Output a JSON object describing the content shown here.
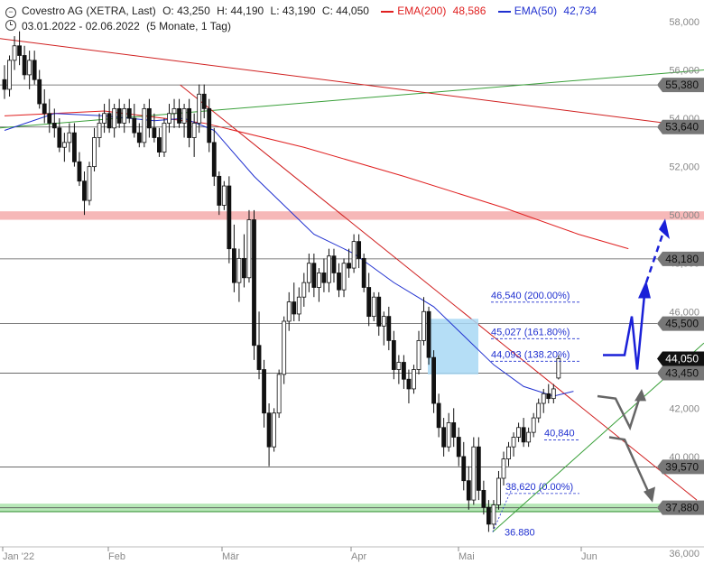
{
  "header": {
    "title": "Covestro AG (XETRA, Last)",
    "open": "O: 43,250",
    "high": "H: 44,190",
    "low": "L: 43,190",
    "close": "C: 44,050",
    "ema200_label": "EMA(200)",
    "ema200_value": "48,586",
    "ema50_label": "EMA(50)",
    "ema50_value": "42,734",
    "range": "03.01.2022 - 02.06.2022",
    "period": "(5 Monate, 1 Tag)",
    "colors": {
      "ema200": "#e02020",
      "ema50": "#2030d0"
    }
  },
  "chart_data": {
    "type": "candlestick",
    "ylim": [
      36,
      58
    ],
    "y_ticks": [
      "58,000",
      "56,000",
      "54,000",
      "52,000",
      "50,000",
      "48,000",
      "46,000",
      "44,000",
      "42,000",
      "40,000",
      "38,000",
      "36,000"
    ],
    "x_ticks": [
      "Jan '22",
      "Feb",
      "Mär",
      "Apr",
      "Mai",
      "Jun"
    ],
    "x_tick_dates": [
      "2022-01-03",
      "2022-02-01",
      "2022-03-01",
      "2022-04-01",
      "2022-05-02",
      "2022-06-01"
    ],
    "last_price": "44,050",
    "levels": [
      {
        "value": 55.38,
        "label": "55,380"
      },
      {
        "value": 53.64,
        "label": "53,640"
      },
      {
        "value": 48.18,
        "label": "48,180"
      },
      {
        "value": 45.5,
        "label": "45,500"
      },
      {
        "value": 43.45,
        "label": "43,450"
      },
      {
        "value": 39.57,
        "label": "39,570"
      },
      {
        "value": 37.88,
        "label": "37,880"
      }
    ],
    "zones": [
      {
        "from": 49.8,
        "to": 50.15,
        "color": "#f6b8b8"
      },
      {
        "from": 37.72,
        "to": 38.05,
        "color": "#b8e8b8"
      }
    ],
    "fibonacci": [
      {
        "value": 46.54,
        "label": "46,540 (200.00%)"
      },
      {
        "value": 45.027,
        "label": "45,027 (161.80%)"
      },
      {
        "value": 44.093,
        "label": "44,093 (138.20%)"
      },
      {
        "value": 40.84,
        "label": "40,840"
      },
      {
        "value": 38.62,
        "label": "38,620 (0.00%)"
      }
    ],
    "low_annotation": {
      "value": 36.88,
      "label": "36.880"
    },
    "candles": [
      [
        55.6,
        56.2,
        54.8,
        55.2
      ],
      [
        55.2,
        56.6,
        54.9,
        56.4
      ],
      [
        56.4,
        57.4,
        56.0,
        57.0
      ],
      [
        57.0,
        57.6,
        56.2,
        56.6
      ],
      [
        56.6,
        57.0,
        55.6,
        55.8
      ],
      [
        55.8,
        56.8,
        55.2,
        56.4
      ],
      [
        56.4,
        56.8,
        55.4,
        55.6
      ],
      [
        55.6,
        56.0,
        54.4,
        54.6
      ],
      [
        54.6,
        55.2,
        53.8,
        54.2
      ],
      [
        54.2,
        54.8,
        53.4,
        53.8
      ],
      [
        53.8,
        54.4,
        53.2,
        53.6
      ],
      [
        53.6,
        54.0,
        52.6,
        52.8
      ],
      [
        52.8,
        53.4,
        52.2,
        53.0
      ],
      [
        53.0,
        53.8,
        52.6,
        53.4
      ],
      [
        53.4,
        53.8,
        52.0,
        52.2
      ],
      [
        52.2,
        52.6,
        51.2,
        51.4
      ],
      [
        51.4,
        51.8,
        50.0,
        50.6
      ],
      [
        50.6,
        52.2,
        50.4,
        52.0
      ],
      [
        52.0,
        53.6,
        51.8,
        53.2
      ],
      [
        53.2,
        54.2,
        52.8,
        53.8
      ],
      [
        53.8,
        54.6,
        53.4,
        54.2
      ],
      [
        54.2,
        54.8,
        53.4,
        53.6
      ],
      [
        53.6,
        54.6,
        53.2,
        54.4
      ],
      [
        54.4,
        54.8,
        53.6,
        53.8
      ],
      [
        53.8,
        54.6,
        53.4,
        54.4
      ],
      [
        54.4,
        54.8,
        53.8,
        54.0
      ],
      [
        54.0,
        54.6,
        53.2,
        53.4
      ],
      [
        53.4,
        53.8,
        52.8,
        53.0
      ],
      [
        53.0,
        54.6,
        52.8,
        54.4
      ],
      [
        54.4,
        54.8,
        53.2,
        53.6
      ],
      [
        53.6,
        54.2,
        53.0,
        53.2
      ],
      [
        53.2,
        53.6,
        52.4,
        52.6
      ],
      [
        52.6,
        54.0,
        52.4,
        53.8
      ],
      [
        53.8,
        54.6,
        53.4,
        54.2
      ],
      [
        54.2,
        54.8,
        53.6,
        54.4
      ],
      [
        54.4,
        54.8,
        53.6,
        53.8
      ],
      [
        53.8,
        54.6,
        53.2,
        54.4
      ],
      [
        54.4,
        54.8,
        52.8,
        53.2
      ],
      [
        53.2,
        54.2,
        52.4,
        53.8
      ],
      [
        53.8,
        55.4,
        53.4,
        55.0
      ],
      [
        55.0,
        55.4,
        54.0,
        54.4
      ],
      [
        54.4,
        54.8,
        52.6,
        53.0
      ],
      [
        53.0,
        53.6,
        51.2,
        51.6
      ],
      [
        51.6,
        51.8,
        50.0,
        50.4
      ],
      [
        50.4,
        51.4,
        50.2,
        51.2
      ],
      [
        51.2,
        51.6,
        48.0,
        48.6
      ],
      [
        48.6,
        49.6,
        46.8,
        47.2
      ],
      [
        47.2,
        48.6,
        46.4,
        48.2
      ],
      [
        48.2,
        49.2,
        47.0,
        47.4
      ],
      [
        47.4,
        50.2,
        47.2,
        49.8
      ],
      [
        49.8,
        50.2,
        44.0,
        44.6
      ],
      [
        44.6,
        46.0,
        43.2,
        43.6
      ],
      [
        43.6,
        44.0,
        41.2,
        41.8
      ],
      [
        41.8,
        42.2,
        39.6,
        40.4
      ],
      [
        40.4,
        42.0,
        40.2,
        41.8
      ],
      [
        41.8,
        43.6,
        41.6,
        43.4
      ],
      [
        43.4,
        45.8,
        43.0,
        45.6
      ],
      [
        45.6,
        46.8,
        45.2,
        46.4
      ],
      [
        46.4,
        47.2,
        45.6,
        45.9
      ],
      [
        45.9,
        47.0,
        45.6,
        46.6
      ],
      [
        46.6,
        47.6,
        46.2,
        47.2
      ],
      [
        47.2,
        48.4,
        46.8,
        48.0
      ],
      [
        48.0,
        48.4,
        46.6,
        47.0
      ],
      [
        47.0,
        47.8,
        46.4,
        47.6
      ],
      [
        47.6,
        48.2,
        46.8,
        47.2
      ],
      [
        47.2,
        48.6,
        46.8,
        48.3
      ],
      [
        48.3,
        48.6,
        47.2,
        47.6
      ],
      [
        47.6,
        48.0,
        46.6,
        46.9
      ],
      [
        46.9,
        48.2,
        46.6,
        48.0
      ],
      [
        48.0,
        48.6,
        47.4,
        47.8
      ],
      [
        47.8,
        49.2,
        47.6,
        48.9
      ],
      [
        48.9,
        49.2,
        47.8,
        48.2
      ],
      [
        48.2,
        48.4,
        46.8,
        47.0
      ],
      [
        47.0,
        47.6,
        45.4,
        45.8
      ],
      [
        45.8,
        46.8,
        45.6,
        46.6
      ],
      [
        46.6,
        46.8,
        45.0,
        45.4
      ],
      [
        45.4,
        46.0,
        44.6,
        45.8
      ],
      [
        45.8,
        46.2,
        44.4,
        44.8
      ],
      [
        44.8,
        45.2,
        43.2,
        43.6
      ],
      [
        43.6,
        44.2,
        43.0,
        43.9
      ],
      [
        43.9,
        44.2,
        42.8,
        43.2
      ],
      [
        43.2,
        43.6,
        42.2,
        42.8
      ],
      [
        42.8,
        43.8,
        42.6,
        43.6
      ],
      [
        43.6,
        45.2,
        43.4,
        44.8
      ],
      [
        44.8,
        46.6,
        44.6,
        46.0
      ],
      [
        46.0,
        46.2,
        43.8,
        44.1
      ],
      [
        44.1,
        44.4,
        41.8,
        42.2
      ],
      [
        42.2,
        42.6,
        40.8,
        41.2
      ],
      [
        41.2,
        41.6,
        40.0,
        40.4
      ],
      [
        40.4,
        41.8,
        40.2,
        41.4
      ],
      [
        41.4,
        42.0,
        40.4,
        40.8
      ],
      [
        40.8,
        41.2,
        39.6,
        40.0
      ],
      [
        40.0,
        40.6,
        38.6,
        39.0
      ],
      [
        39.0,
        39.6,
        37.8,
        38.2
      ],
      [
        38.2,
        40.8,
        38.0,
        40.4
      ],
      [
        40.4,
        40.8,
        38.2,
        38.6
      ],
      [
        38.6,
        39.0,
        37.6,
        37.9
      ],
      [
        37.9,
        38.2,
        36.88,
        37.2
      ],
      [
        37.2,
        38.2,
        37.0,
        38.0
      ],
      [
        38.0,
        39.4,
        37.8,
        39.1
      ],
      [
        39.1,
        40.2,
        38.8,
        39.9
      ],
      [
        39.9,
        40.6,
        39.6,
        40.4
      ],
      [
        40.4,
        41.0,
        40.0,
        40.8
      ],
      [
        40.8,
        41.4,
        40.6,
        41.2
      ],
      [
        41.2,
        41.6,
        40.4,
        40.6
      ],
      [
        40.6,
        41.2,
        40.4,
        41.0
      ],
      [
        41.0,
        41.8,
        40.8,
        41.6
      ],
      [
        41.6,
        42.4,
        41.4,
        42.2
      ],
      [
        42.2,
        42.8,
        41.8,
        42.6
      ],
      [
        42.6,
        43.0,
        42.2,
        42.4
      ],
      [
        42.4,
        43.0,
        42.2,
        42.8
      ],
      [
        43.25,
        44.19,
        43.19,
        44.05
      ]
    ],
    "ema200": [
      [
        0,
        54.1
      ],
      [
        20,
        54.3
      ],
      [
        40,
        53.8
      ],
      [
        60,
        52.8
      ],
      [
        80,
        51.6
      ],
      [
        100,
        50.3
      ],
      [
        115,
        49.2
      ],
      [
        125,
        48.6
      ]
    ],
    "ema50": [
      [
        0,
        53.5
      ],
      [
        10,
        54.2
      ],
      [
        20,
        54.1
      ],
      [
        30,
        53.9
      ],
      [
        36,
        54.0
      ],
      [
        42,
        53.5
      ],
      [
        50,
        51.6
      ],
      [
        56,
        50.4
      ],
      [
        62,
        49.2
      ],
      [
        70,
        48.4
      ],
      [
        78,
        47.2
      ],
      [
        86,
        46.2
      ],
      [
        92,
        45.0
      ],
      [
        98,
        43.8
      ],
      [
        104,
        42.9
      ],
      [
        110,
        42.5
      ],
      [
        114,
        42.7
      ]
    ],
    "scenario_labels": {
      "up_target": "48,180",
      "down_target": "37,880"
    }
  }
}
